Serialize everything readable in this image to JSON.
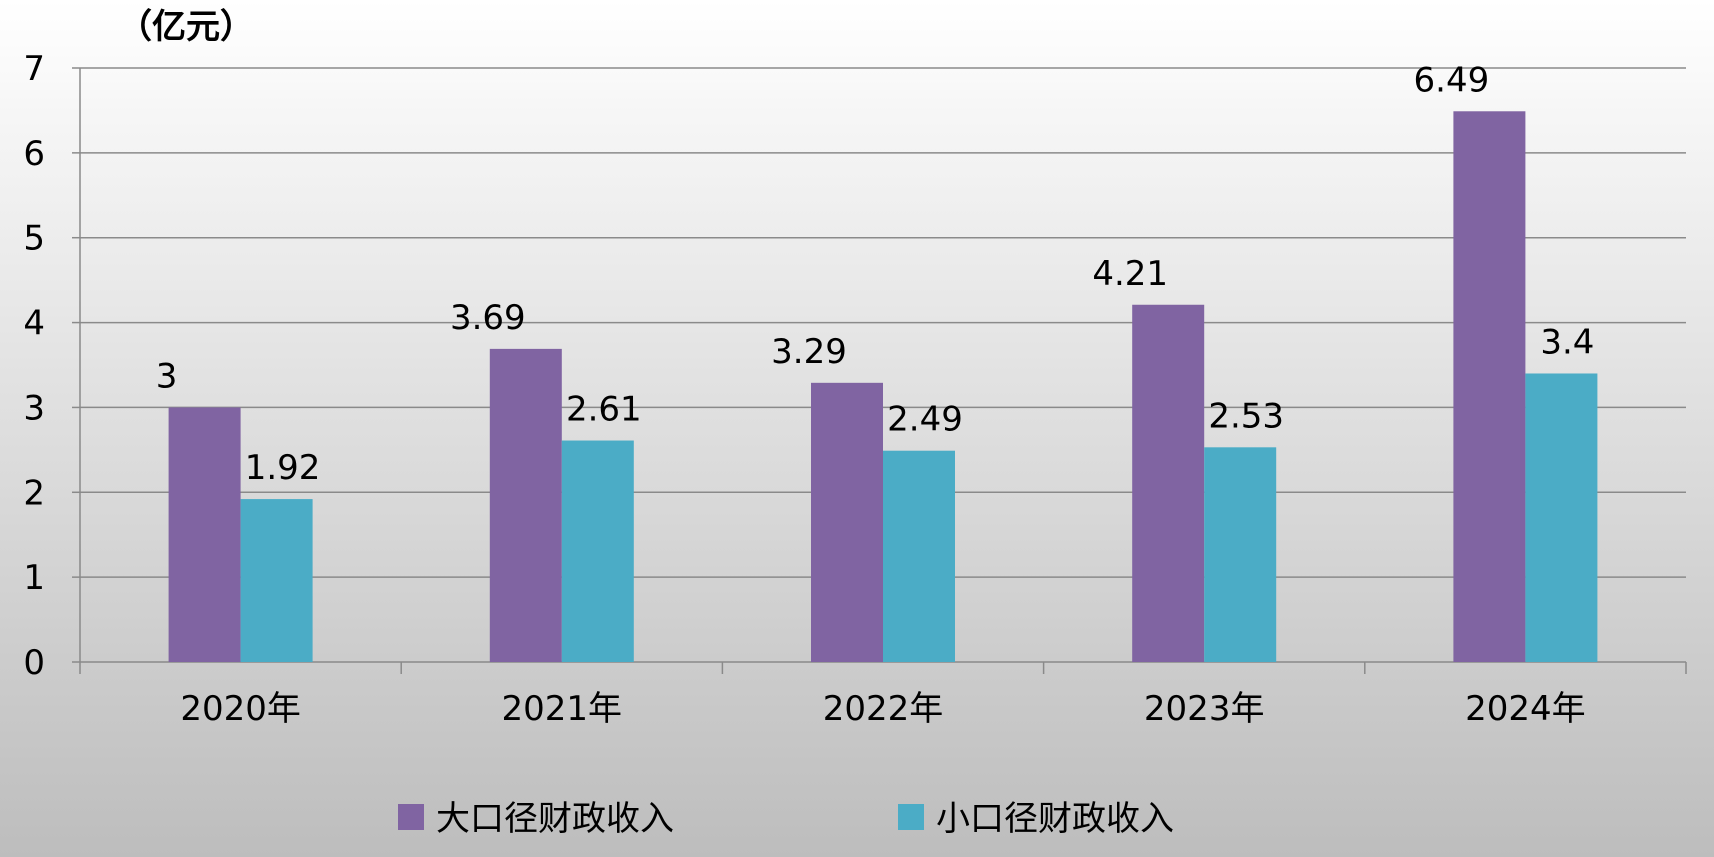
{
  "chart_data": {
    "type": "bar",
    "y_unit_label": "（亿元）",
    "categories": [
      "2020年",
      "2021年",
      "2022年",
      "2023年",
      "2024年"
    ],
    "series": [
      {
        "name": "大口径财政收入",
        "color": "#8064a2",
        "values": [
          3,
          3.69,
          3.29,
          4.21,
          6.49
        ],
        "labels": [
          "3",
          "3.69",
          "3.29",
          "4.21",
          "6.49"
        ]
      },
      {
        "name": "小口径财政收入",
        "color": "#4bacc6",
        "values": [
          1.92,
          2.61,
          2.49,
          2.53,
          3.4
        ],
        "labels": [
          "1.92",
          "2.61",
          "2.49",
          "2.53",
          "3.4"
        ]
      }
    ],
    "ylim": [
      0,
      7
    ],
    "yticks": [
      "0",
      "1",
      "2",
      "3",
      "4",
      "5",
      "6",
      "7"
    ],
    "grid": true,
    "legend_position": "bottom",
    "xlabel": "",
    "ylabel": ""
  }
}
